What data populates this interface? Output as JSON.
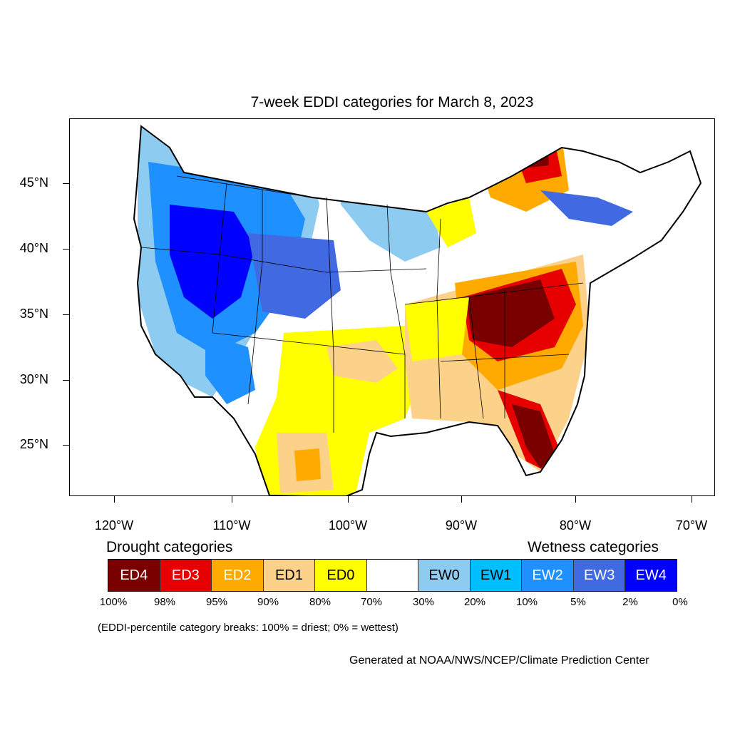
{
  "title": "7-week EDDI categories for March 8, 2023",
  "lat_labels": [
    "45°N",
    "40°N",
    "35°N",
    "30°N",
    "25°N"
  ],
  "lon_labels": [
    "120°W",
    "110°W",
    "100°W",
    "90°W",
    "80°W",
    "70°W"
  ],
  "legend": {
    "drought_heading": "Drought categories",
    "wetness_heading": "Wetness categories",
    "categories": [
      {
        "label": "ED4",
        "color": "#7a0000",
        "text_color": "#ffffff"
      },
      {
        "label": "ED3",
        "color": "#e60000",
        "text_color": "#ffffff"
      },
      {
        "label": "ED2",
        "color": "#ffaa00",
        "text_color": "#ffffff"
      },
      {
        "label": "ED1",
        "color": "#fcd28a",
        "text_color": "#000000"
      },
      {
        "label": "ED0",
        "color": "#ffff00",
        "text_color": "#000000"
      },
      {
        "label": "",
        "color": "#ffffff",
        "text_color": "#000000"
      },
      {
        "label": "EW0",
        "color": "#8ecbf0",
        "text_color": "#000000"
      },
      {
        "label": "EW1",
        "color": "#00bfff",
        "text_color": "#000000"
      },
      {
        "label": "EW2",
        "color": "#1e90ff",
        "text_color": "#ffffff"
      },
      {
        "label": "EW3",
        "color": "#4169e1",
        "text_color": "#ffffff"
      },
      {
        "label": "EW4",
        "color": "#0000ff",
        "text_color": "#ffffff"
      }
    ],
    "breaks": [
      "100%",
      "98%",
      "95%",
      "90%",
      "80%",
      "70%",
      "30%",
      "20%",
      "10%",
      "5%",
      "2%",
      "0%"
    ]
  },
  "note": "(EDDI-percentile category breaks: 100% = driest; 0% = wettest)",
  "credit": "Generated at NOAA/NWS/NCEP/Climate Prediction Center"
}
